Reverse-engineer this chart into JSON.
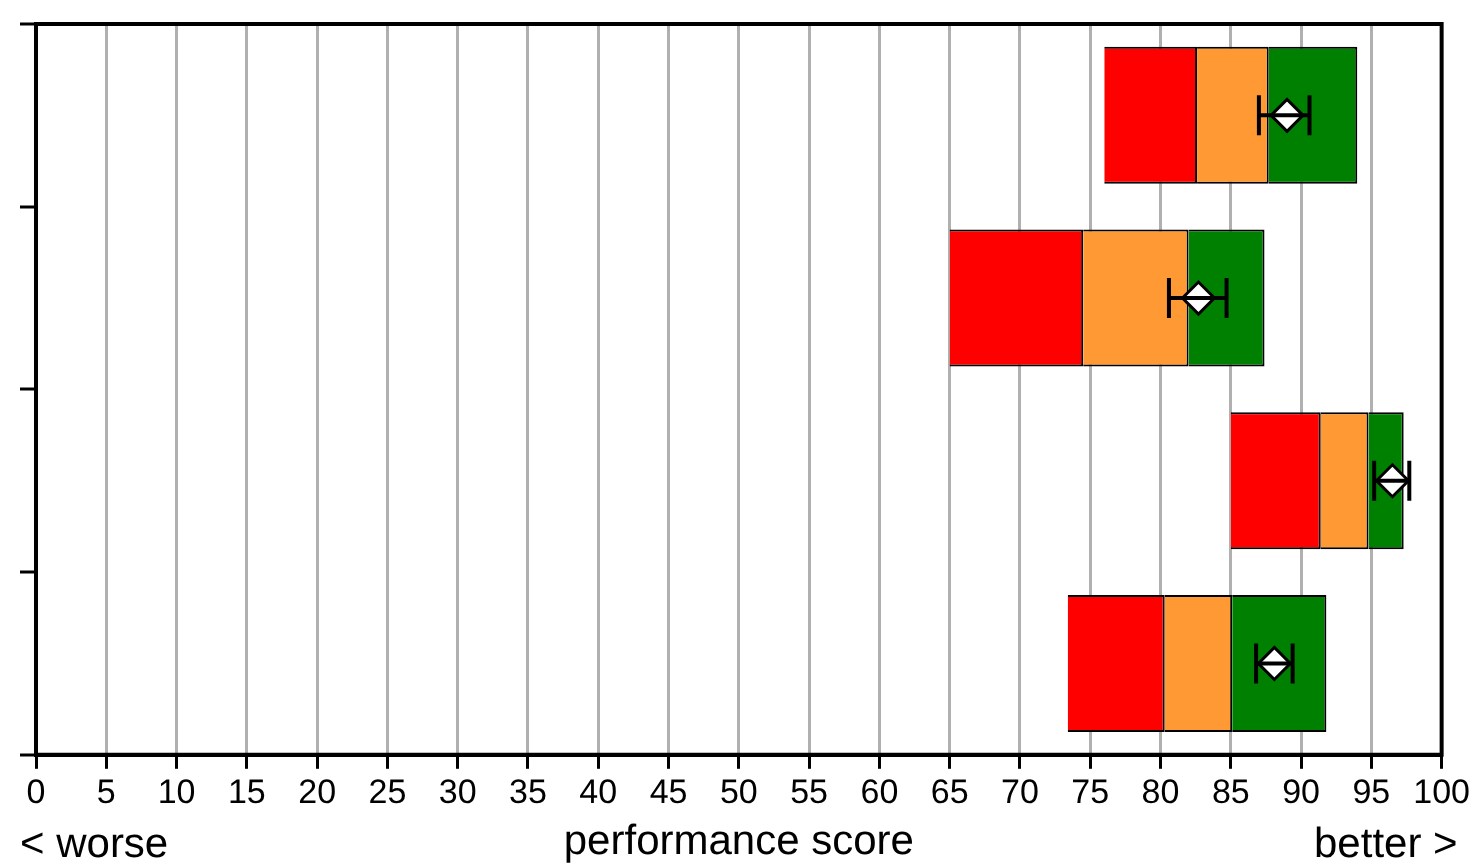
{
  "chart_data": {
    "type": "bar",
    "orientation": "horizontal",
    "xlabel": "performance score",
    "annotations": [
      "< worse",
      "better >"
    ],
    "categories": [
      null,
      null,
      null,
      null
    ],
    "series": [
      {
        "color": "#ff0000",
        "base": [
          76,
          65,
          85,
          73.4
        ],
        "values": [
          6.6,
          9.5,
          6.4,
          6.9
        ]
      },
      {
        "color": "#ff9933",
        "base": [
          82.6,
          74.5,
          91.4,
          80.3
        ],
        "values": [
          5.1,
          7.5,
          3.4,
          4.8
        ]
      },
      {
        "color": "#008000",
        "base": [
          87.7,
          82,
          94.8,
          85.1
        ],
        "values": [
          6.3,
          5.4,
          2.5,
          6.7
        ]
      },
      {
        "type": "scatter",
        "color": "#ffffff",
        "marker": "diamond",
        "values": [
          89,
          82.7,
          96.5,
          88.1
        ],
        "errors": [
          [
            87,
            90.6
          ],
          [
            80.6,
            84.7
          ],
          [
            95.2,
            97.7
          ],
          [
            86.8,
            89.4
          ]
        ]
      }
    ],
    "xlim": [
      0,
      100
    ],
    "xticks": [
      0,
      5,
      10,
      15,
      20,
      25,
      30,
      35,
      40,
      45,
      50,
      55,
      60,
      65,
      70,
      75,
      80,
      85,
      90,
      95,
      100
    ],
    "grid": "x",
    "tick_labels": "x",
    "legend": false
  }
}
